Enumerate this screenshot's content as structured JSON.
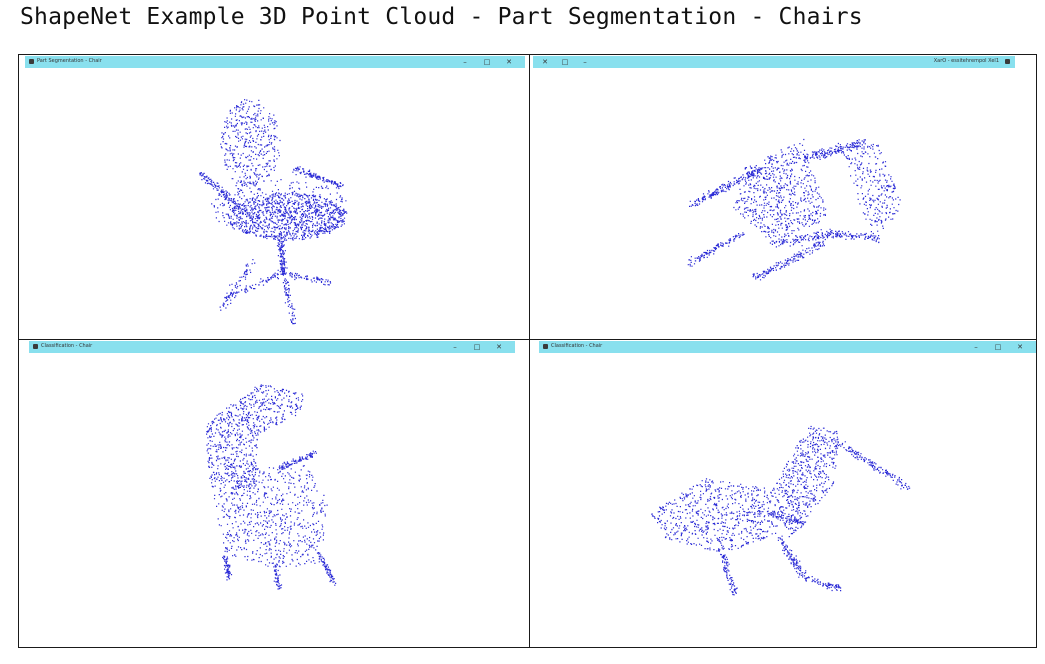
{
  "page": {
    "title": "ShapeNet Example 3D Point Cloud - Part Segmentation - Chairs"
  },
  "windows": [
    {
      "title": "Part Segmentation - Chair",
      "controls": {
        "minimize": "–",
        "maximize": "□",
        "close": "✕"
      },
      "icon": "app-icon",
      "point_color": "#2a2ad6"
    },
    {
      "title": "XarO - essitehrempol Xel1",
      "controls": {
        "minimize": "–",
        "maximize": "□",
        "close": "✕"
      },
      "icon": "app-icon",
      "point_color": "#2a2ad6"
    },
    {
      "title": "Classification - Chair",
      "controls": {
        "minimize": "–",
        "maximize": "□",
        "close": "✕"
      },
      "icon": "app-icon",
      "point_color": "#2a2ad6"
    },
    {
      "title": "Classification - Chair",
      "controls": {
        "minimize": "–",
        "maximize": "□",
        "close": "✕"
      },
      "icon": "app-icon",
      "point_color": "#2a2ad6"
    }
  ],
  "colors": {
    "titlebar": "#89e0ee",
    "points": "#2a2ad6",
    "border": "#1a1a1a"
  }
}
